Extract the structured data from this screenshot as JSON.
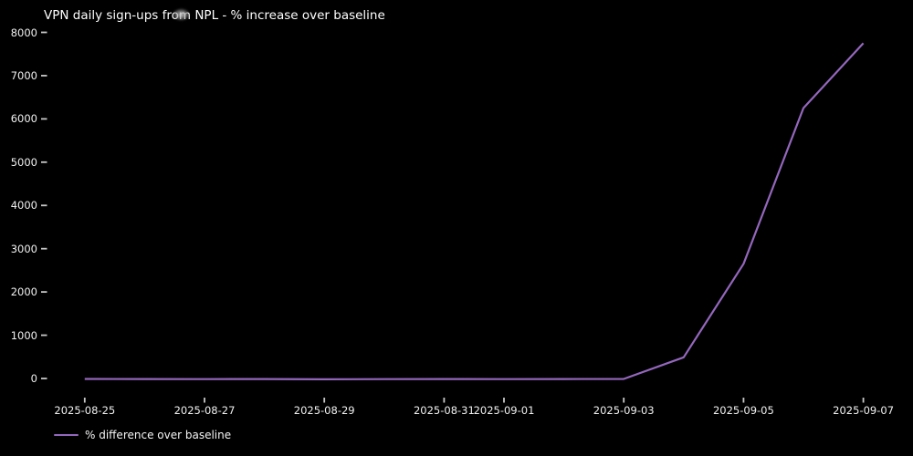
{
  "title": "VPN daily sign-ups from NPL - % increase over baseline",
  "legend": {
    "label": "% difference over baseline"
  },
  "colors": {
    "background": "#000000",
    "text": "#ffffff",
    "tick_text": "#f0f0f0",
    "tick_mark": "#c8c8c8",
    "line": "#9467bd"
  },
  "artifacts": {
    "title_smudge": "gray blur spot over the word 'from'"
  },
  "chart_data": {
    "type": "line",
    "title": "VPN daily sign-ups from NPL - % increase over baseline",
    "xlabel": "",
    "ylabel": "",
    "grid": false,
    "background": "black",
    "x": [
      "2025-08-25",
      "2025-08-26",
      "2025-08-27",
      "2025-08-28",
      "2025-08-29",
      "2025-08-30",
      "2025-08-31",
      "2025-09-01",
      "2025-09-02",
      "2025-09-03",
      "2025-09-04",
      "2025-09-05",
      "2025-09-06",
      "2025-09-07"
    ],
    "series": [
      {
        "name": "% difference over baseline",
        "color": "#9467bd",
        "values": [
          -10,
          -12,
          -15,
          -12,
          -18,
          -15,
          -12,
          -15,
          -12,
          -10,
          490,
          2650,
          6250,
          7750
        ]
      }
    ],
    "y_ticks": [
      0,
      1000,
      2000,
      3000,
      4000,
      5000,
      6000,
      7000,
      8000
    ],
    "ylim": [
      -320,
      8330
    ],
    "x_ticks": [
      {
        "label": "2025-08-25",
        "day": 0
      },
      {
        "label": "2025-08-27",
        "day": 2
      },
      {
        "label": "2025-08-29",
        "day": 4
      },
      {
        "label": "2025-08-31",
        "day": 6
      },
      {
        "label": "2025-09-01",
        "day": 7
      },
      {
        "label": "2025-09-03",
        "day": 9
      },
      {
        "label": "2025-09-05",
        "day": 11
      },
      {
        "label": "2025-09-07",
        "day": 13
      }
    ],
    "legend_position": "lower left, below axes"
  }
}
